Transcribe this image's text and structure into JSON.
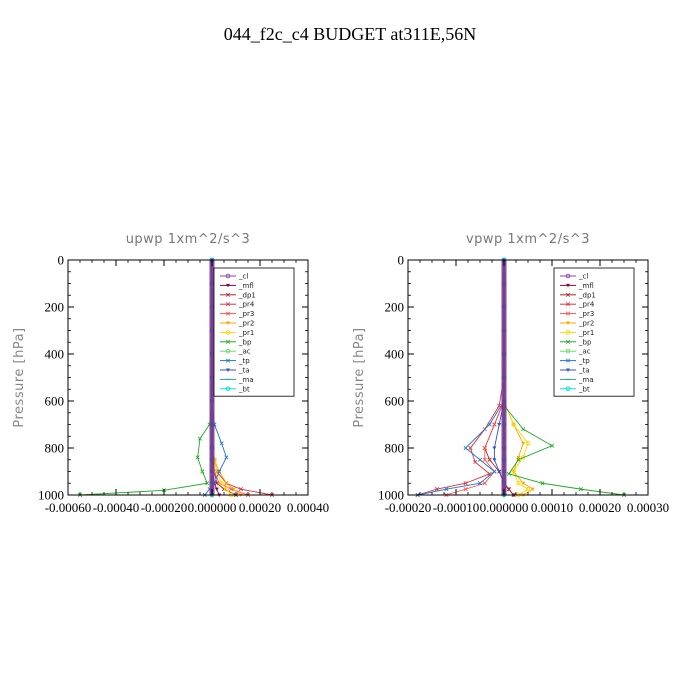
{
  "figure": {
    "title": "044_f2c_c4  BUDGET at311E,56N"
  },
  "chart_data": [
    {
      "type": "line",
      "title": "upwp   1xm^2/s^3",
      "ylabel": "Pressure [hPa]",
      "xlabel": "",
      "xlim": [
        -0.0006,
        0.0004
      ],
      "ylim": [
        1000,
        0
      ],
      "xticks": [
        -0.0006,
        -0.0004,
        -0.0002,
        0.0,
        0.0002,
        0.0004
      ],
      "xtick_labels": [
        "-0.00060",
        "-0.00040",
        "-0.00020",
        "0.000000",
        "0.00020",
        "0.00040"
      ],
      "yticks": [
        0,
        200,
        400,
        600,
        800,
        1000
      ],
      "ytick_labels": [
        "0",
        "200",
        "400",
        "600",
        "800",
        "1000"
      ],
      "legend_position": "top-right",
      "series": [
        {
          "name": "_cl",
          "color": "#8e44ad",
          "marker": "circle",
          "x": [
            0,
            0,
            0,
            0,
            0,
            0,
            0,
            0,
            0,
            0,
            0,
            0,
            0,
            0
          ],
          "y": [
            0,
            100,
            200,
            300,
            400,
            500,
            600,
            700,
            800,
            850,
            900,
            950,
            975,
            1000
          ]
        },
        {
          "name": "_mfl",
          "color": "#8b0a3a",
          "marker": "tri",
          "x": [
            0,
            0,
            0,
            0,
            0,
            0,
            0,
            0,
            0,
            0,
            0,
            1e-05,
            2e-05,
            3e-05
          ],
          "y": [
            0,
            100,
            200,
            300,
            400,
            500,
            600,
            700,
            800,
            850,
            900,
            950,
            975,
            1000
          ]
        },
        {
          "name": "_dp1",
          "color": "#b22222",
          "marker": "x",
          "x": [
            0,
            0,
            0,
            0,
            0,
            0,
            0,
            0,
            0,
            5e-06,
            1e-05,
            2e-05,
            5e-05,
            0.0001
          ],
          "y": [
            0,
            100,
            200,
            300,
            400,
            500,
            600,
            700,
            800,
            850,
            900,
            950,
            975,
            1000
          ]
        },
        {
          "name": "_pr4",
          "color": "#e0303a",
          "marker": "x",
          "x": [
            0,
            0,
            0,
            0,
            0,
            0,
            0,
            0,
            0,
            1e-05,
            2e-05,
            6e-05,
            0.00012,
            0.00025
          ],
          "y": [
            0,
            100,
            200,
            300,
            400,
            500,
            600,
            700,
            800,
            850,
            900,
            950,
            975,
            1000
          ]
        },
        {
          "name": "_pr3",
          "color": "#ff5050",
          "marker": "x",
          "x": [
            0,
            0,
            0,
            0,
            0,
            0,
            0,
            0,
            0,
            0,
            1e-05,
            3e-05,
            8e-05,
            0.00015
          ],
          "y": [
            0,
            100,
            200,
            300,
            400,
            500,
            600,
            700,
            800,
            850,
            900,
            950,
            975,
            1000
          ]
        },
        {
          "name": "_pr2",
          "color": "#ffa500",
          "marker": "tri",
          "x": [
            0,
            0,
            0,
            0,
            0,
            0,
            0,
            0,
            0,
            1e-05,
            3e-05,
            6e-05,
            9e-05,
            0.00012
          ],
          "y": [
            0,
            100,
            200,
            300,
            400,
            500,
            600,
            700,
            800,
            850,
            900,
            950,
            975,
            1000
          ]
        },
        {
          "name": "_pr1",
          "color": "#ffd700",
          "marker": "circle",
          "x": [
            0,
            0,
            0,
            0,
            0,
            0,
            0,
            0,
            0,
            1e-05,
            2e-05,
            4e-05,
            6e-05,
            8e-05
          ],
          "y": [
            0,
            100,
            200,
            300,
            400,
            500,
            600,
            700,
            800,
            850,
            900,
            950,
            975,
            1000
          ]
        },
        {
          "name": "_bp",
          "color": "#22aa22",
          "marker": "x",
          "x": [
            0,
            0,
            0,
            0,
            0,
            0,
            0,
            -1e-05,
            -5e-05,
            -6e-05,
            -4e-05,
            -2e-05,
            -0.0002,
            -0.00055
          ],
          "y": [
            0,
            100,
            200,
            300,
            400,
            500,
            600,
            700,
            760,
            840,
            900,
            950,
            980,
            1000
          ]
        },
        {
          "name": "_ac",
          "color": "#66dd66",
          "marker": "circle",
          "x": [
            0,
            0,
            0,
            0,
            0,
            0,
            0,
            0,
            0,
            0,
            0,
            0,
            0,
            0
          ],
          "y": [
            0,
            100,
            200,
            300,
            400,
            500,
            600,
            700,
            800,
            850,
            900,
            950,
            975,
            1000
          ]
        },
        {
          "name": "_tp",
          "color": "#1f77d0",
          "marker": "x",
          "x": [
            0,
            0,
            0,
            0,
            0,
            0,
            0,
            1e-05,
            4e-05,
            6e-05,
            3e-05,
            1e-05,
            -1e-05,
            -3e-05
          ],
          "y": [
            0,
            100,
            200,
            300,
            400,
            500,
            600,
            700,
            780,
            840,
            900,
            950,
            975,
            1000
          ]
        },
        {
          "name": "_ta",
          "color": "#3050c0",
          "marker": "tri",
          "x": [
            0,
            0,
            0,
            0,
            0,
            0,
            0,
            0,
            0,
            0,
            0,
            0,
            0,
            0
          ],
          "y": [
            0,
            100,
            200,
            300,
            400,
            500,
            600,
            700,
            800,
            850,
            900,
            950,
            975,
            1000
          ]
        },
        {
          "name": "_ma",
          "color": "#2aa0a0",
          "marker": "dash",
          "x": [
            0,
            0,
            0,
            0,
            0,
            0,
            0,
            0,
            0,
            0,
            0,
            0,
            0,
            0
          ],
          "y": [
            0,
            100,
            200,
            300,
            400,
            500,
            600,
            700,
            800,
            850,
            900,
            950,
            975,
            1000
          ]
        },
        {
          "name": "_bt",
          "color": "#00e0e0",
          "marker": "circle",
          "x": [
            0,
            0,
            0,
            0,
            0,
            0,
            0,
            0,
            0,
            0,
            0,
            0,
            0,
            0
          ],
          "y": [
            0,
            100,
            200,
            300,
            400,
            500,
            600,
            700,
            800,
            850,
            900,
            950,
            975,
            1000
          ]
        }
      ]
    },
    {
      "type": "line",
      "title": "vpwp   1xm^2/s^3",
      "ylabel": "Pressure [hPa]",
      "xlabel": "",
      "xlim": [
        -0.0002,
        0.0003
      ],
      "ylim": [
        1000,
        0
      ],
      "xticks": [
        -0.0002,
        -0.0001,
        0.0,
        0.0001,
        0.0002,
        0.0003
      ],
      "xtick_labels": [
        "-0.00020",
        "-0.00010",
        "0.000000",
        "0.00010",
        "0.00020",
        "0.00030"
      ],
      "yticks": [
        0,
        200,
        400,
        600,
        800,
        1000
      ],
      "ytick_labels": [
        "0",
        "200",
        "400",
        "600",
        "800",
        "1000"
      ],
      "legend_position": "top-right",
      "series": [
        {
          "name": "_cl",
          "color": "#8e44ad",
          "marker": "circle",
          "x": [
            0,
            0,
            0,
            0,
            0,
            0,
            0,
            0,
            0,
            0,
            0,
            0,
            0,
            0
          ],
          "y": [
            0,
            100,
            200,
            300,
            400,
            500,
            600,
            700,
            800,
            850,
            900,
            950,
            975,
            1000
          ]
        },
        {
          "name": "_mfl",
          "color": "#8b0a3a",
          "marker": "tri",
          "x": [
            0,
            0,
            0,
            0,
            0,
            0,
            0,
            0,
            0,
            0,
            0,
            0,
            1e-05,
            2e-05
          ],
          "y": [
            0,
            100,
            200,
            300,
            400,
            500,
            600,
            700,
            800,
            850,
            900,
            950,
            975,
            1000
          ]
        },
        {
          "name": "_dp1",
          "color": "#b22222",
          "marker": "x",
          "x": [
            0,
            0,
            0,
            0,
            0,
            0,
            0,
            -2e-05,
            -4e-05,
            -3e-05,
            -1e-05,
            0,
            1e-05,
            2e-05
          ],
          "y": [
            0,
            100,
            200,
            300,
            400,
            500,
            600,
            700,
            800,
            850,
            900,
            950,
            975,
            1000
          ]
        },
        {
          "name": "_pr4",
          "color": "#e0303a",
          "marker": "x",
          "x": [
            0,
            0,
            0,
            0,
            0,
            0,
            -1e-05,
            -4e-05,
            -7e-05,
            -6e-05,
            -3e-05,
            -8e-05,
            -0.00014,
            -0.00018
          ],
          "y": [
            0,
            100,
            200,
            300,
            400,
            500,
            620,
            720,
            800,
            860,
            910,
            950,
            975,
            1000
          ]
        },
        {
          "name": "_pr3",
          "color": "#ff5050",
          "marker": "x",
          "x": [
            0,
            0,
            0,
            0,
            0,
            0,
            0,
            -2e-05,
            -4e-05,
            -4e-05,
            -2e-05,
            -4e-05,
            -8e-05,
            -0.00012
          ],
          "y": [
            0,
            100,
            200,
            300,
            400,
            500,
            600,
            700,
            800,
            850,
            900,
            950,
            975,
            1000
          ]
        },
        {
          "name": "_pr2",
          "color": "#ffa500",
          "marker": "tri",
          "x": [
            0,
            0,
            0,
            0,
            0,
            0,
            0,
            2e-05,
            4e-05,
            3e-05,
            2e-05,
            4e-05,
            6e-05,
            4e-05
          ],
          "y": [
            0,
            100,
            200,
            300,
            400,
            500,
            600,
            700,
            780,
            840,
            900,
            950,
            975,
            1000
          ]
        },
        {
          "name": "_pr1",
          "color": "#ffd700",
          "marker": "circle",
          "x": [
            0,
            0,
            0,
            0,
            0,
            0,
            0,
            2e-05,
            5e-05,
            4e-05,
            2e-05,
            3e-05,
            5e-05,
            3e-05
          ],
          "y": [
            0,
            100,
            200,
            300,
            400,
            500,
            600,
            700,
            780,
            840,
            900,
            950,
            975,
            1000
          ]
        },
        {
          "name": "_bp",
          "color": "#22aa22",
          "marker": "x",
          "x": [
            0,
            0,
            0,
            0,
            0,
            0,
            0,
            4e-05,
            0.0001,
            3e-05,
            1e-05,
            8e-05,
            0.00016,
            0.00025
          ],
          "y": [
            0,
            100,
            200,
            300,
            400,
            500,
            620,
            720,
            790,
            850,
            910,
            950,
            975,
            1000
          ]
        },
        {
          "name": "_ac",
          "color": "#66dd66",
          "marker": "circle",
          "x": [
            0,
            0,
            0,
            0,
            0,
            0,
            0,
            0,
            0,
            0,
            0,
            0,
            0,
            0
          ],
          "y": [
            0,
            100,
            200,
            300,
            400,
            500,
            600,
            700,
            800,
            850,
            900,
            950,
            975,
            1000
          ]
        },
        {
          "name": "_tp",
          "color": "#1f77d0",
          "marker": "x",
          "x": [
            0,
            0,
            0,
            0,
            0,
            0,
            0,
            -3e-05,
            -8e-05,
            -5e-05,
            -2e-05,
            -5e-05,
            -0.00012,
            -0.00018
          ],
          "y": [
            0,
            100,
            200,
            300,
            400,
            500,
            600,
            700,
            800,
            850,
            900,
            950,
            975,
            1000
          ]
        },
        {
          "name": "_ta",
          "color": "#3050c0",
          "marker": "tri",
          "x": [
            0,
            0,
            0,
            0,
            0,
            0,
            0,
            -1e-05,
            -2e-05,
            -2e-05,
            -1e-05,
            0,
            0,
            0
          ],
          "y": [
            0,
            100,
            200,
            300,
            400,
            500,
            600,
            700,
            800,
            850,
            900,
            950,
            975,
            1000
          ]
        },
        {
          "name": "_ma",
          "color": "#2aa0a0",
          "marker": "dash",
          "x": [
            0,
            0,
            0,
            0,
            0,
            0,
            0,
            0,
            0,
            0,
            0,
            0,
            0,
            0
          ],
          "y": [
            0,
            100,
            200,
            300,
            400,
            500,
            600,
            700,
            800,
            850,
            900,
            950,
            975,
            1000
          ]
        },
        {
          "name": "_bt",
          "color": "#00e0e0",
          "marker": "circle",
          "x": [
            0,
            0,
            0,
            0,
            0,
            0,
            0,
            0,
            0,
            0,
            0,
            0,
            0,
            0
          ],
          "y": [
            0,
            100,
            200,
            300,
            400,
            500,
            600,
            700,
            800,
            850,
            900,
            950,
            975,
            1000
          ]
        }
      ]
    }
  ]
}
